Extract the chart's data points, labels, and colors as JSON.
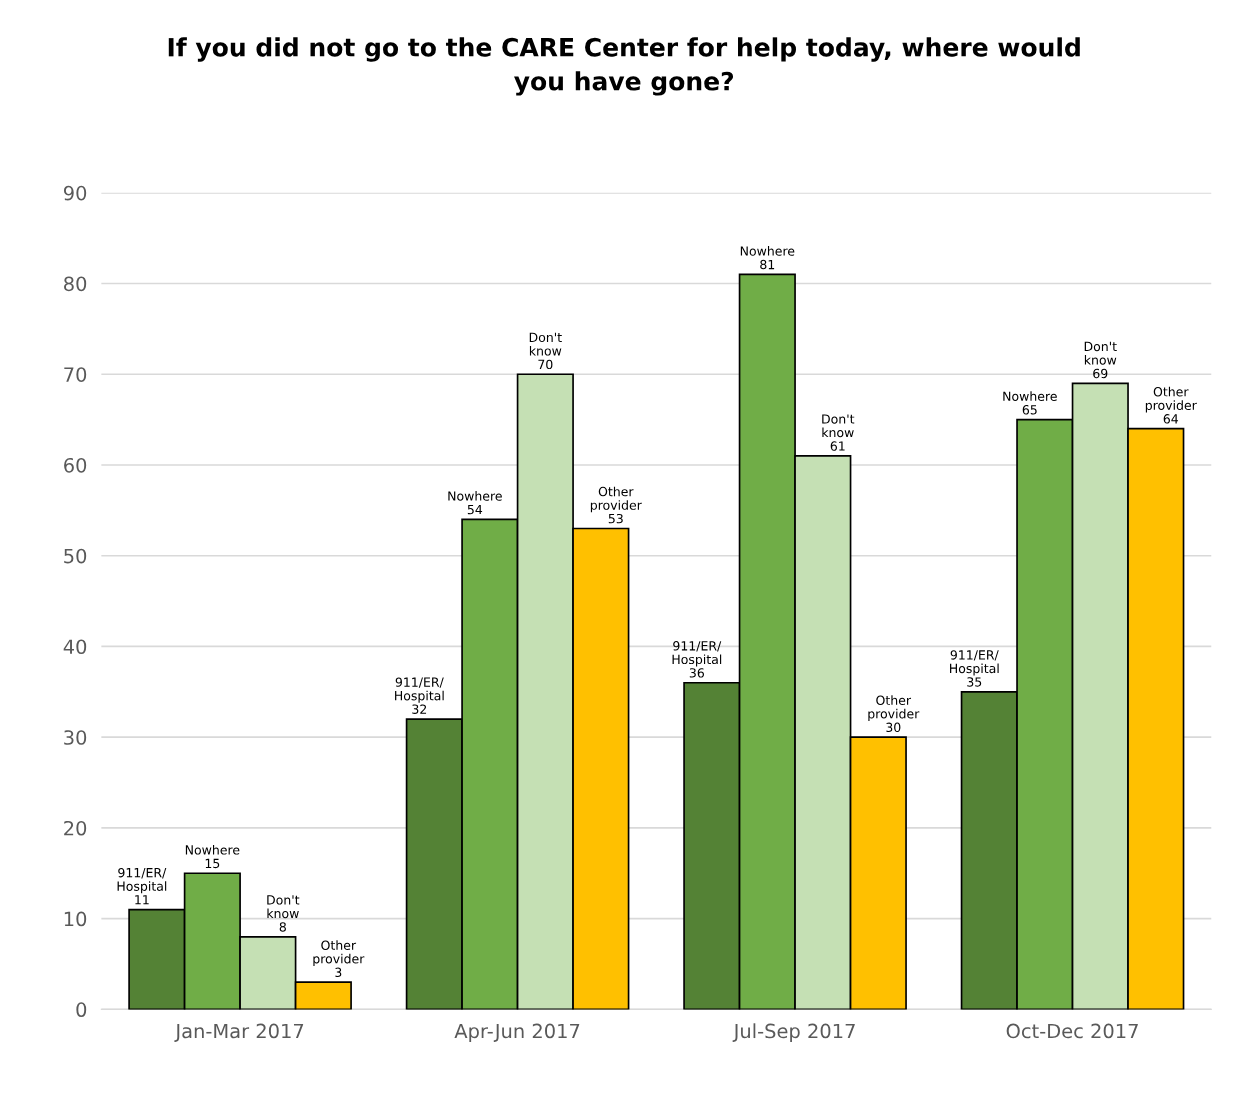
{
  "chart_data": {
    "type": "bar",
    "title": "If you did not go to the CARE Center for help today, where would you have gone?",
    "categories": [
      "Jan-Mar 2017",
      "Apr-Jun 2017",
      "Jul-Sep 2017",
      "Oct-Dec 2017"
    ],
    "series": [
      {
        "name": "911/ER/Hospital",
        "color": "#548235",
        "values": [
          11,
          32,
          36,
          35
        ]
      },
      {
        "name": "Nowhere",
        "color": "#70ad47",
        "values": [
          15,
          54,
          81,
          65
        ]
      },
      {
        "name": "Don't know",
        "color": "#c5e0b4",
        "values": [
          8,
          70,
          61,
          69
        ]
      },
      {
        "name": "Other provider",
        "color": "#ffc000",
        "values": [
          3,
          53,
          30,
          64
        ]
      }
    ],
    "ylim": [
      0,
      90
    ],
    "yticks": [
      0,
      10,
      20,
      30,
      40,
      50,
      60,
      70,
      80,
      90
    ],
    "grid": "y",
    "legend": false,
    "data_labels": true
  }
}
